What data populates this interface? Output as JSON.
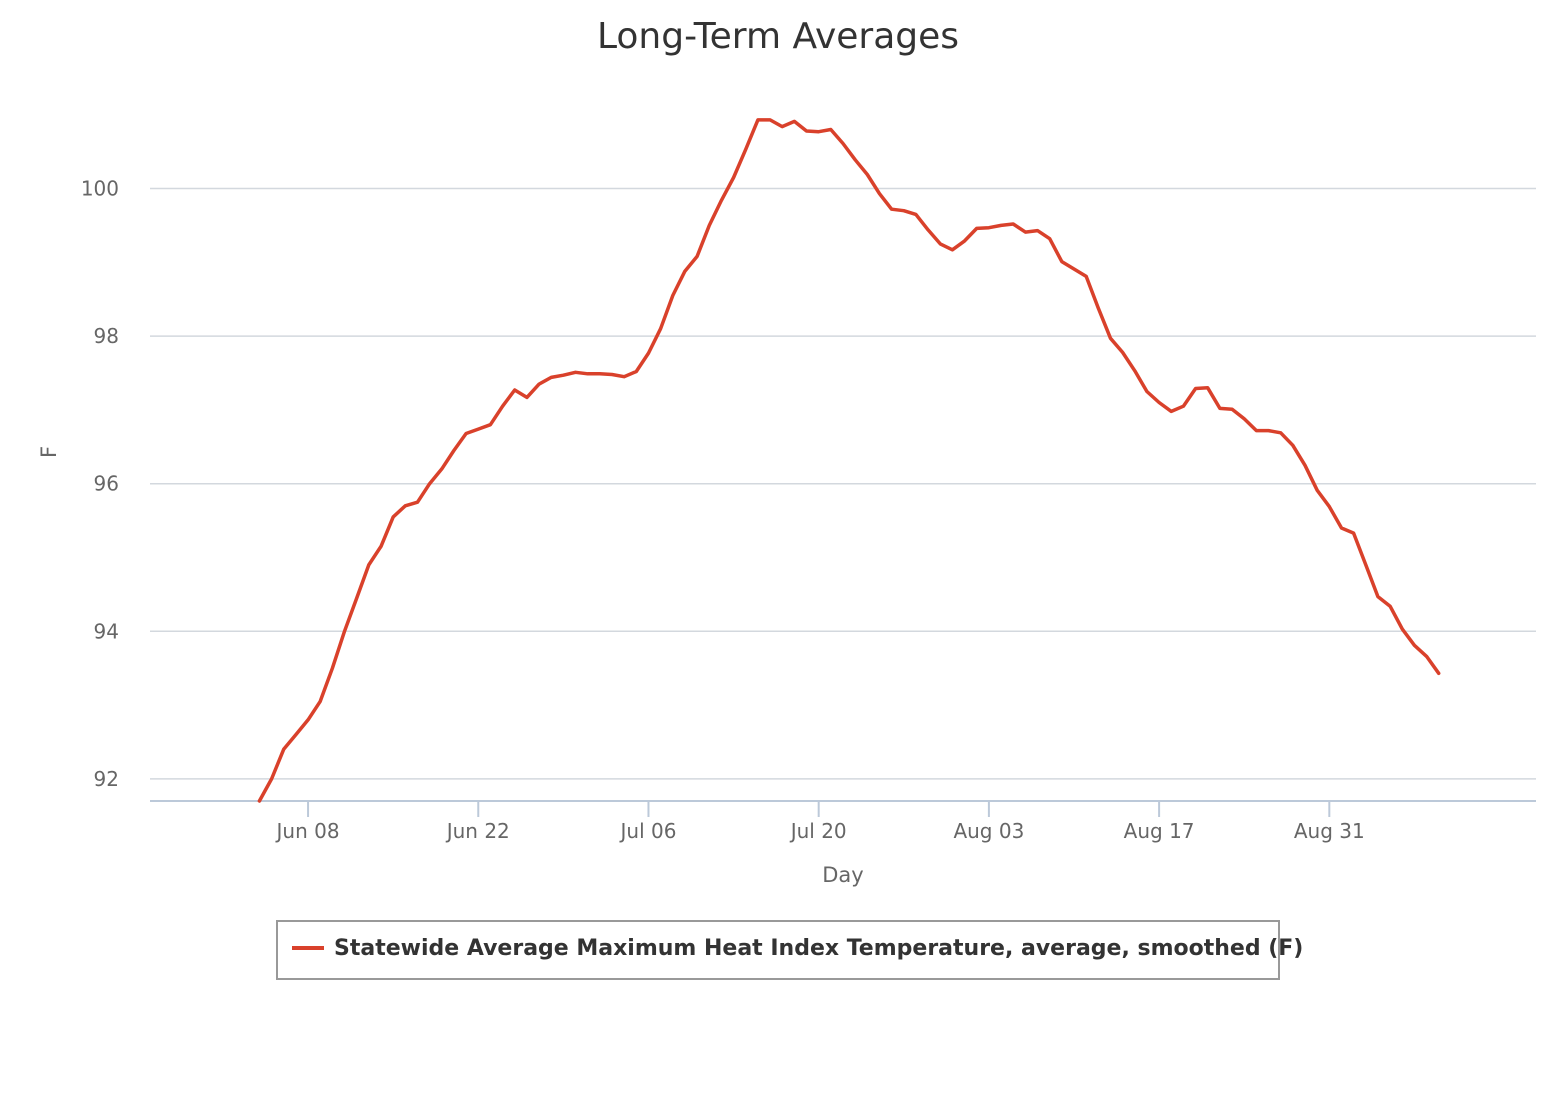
{
  "chart_data": {
    "type": "line",
    "title": "Long-Term Averages",
    "xlabel": "Day",
    "ylabel": "F",
    "ylim": [
      91.7,
      101.2
    ],
    "xlim": [
      "2023-05-26",
      "2023-09-17"
    ],
    "x_ticks": [
      {
        "date": "2023-06-08",
        "label": "Jun 08"
      },
      {
        "date": "2023-06-22",
        "label": "Jun 22"
      },
      {
        "date": "2023-07-06",
        "label": "Jul 06"
      },
      {
        "date": "2023-07-20",
        "label": "Jul 20"
      },
      {
        "date": "2023-08-03",
        "label": "Aug 03"
      },
      {
        "date": "2023-08-17",
        "label": "Aug 17"
      },
      {
        "date": "2023-08-31",
        "label": "Aug 31"
      }
    ],
    "y_ticks": [
      92,
      94,
      96,
      98,
      100
    ],
    "grid": true,
    "legend_position": "bottom-center",
    "series": [
      {
        "name": "Statewide Average Maximum Heat Index Temperature, average, smoothed (F)",
        "color": "#d9412b",
        "start_date": "2023-06-04",
        "values": [
          91.7,
          92.0,
          92.4,
          92.6,
          92.8,
          93.05,
          93.5,
          94.0,
          94.45,
          94.9,
          95.15,
          95.55,
          95.7,
          95.75,
          96.0,
          96.2,
          96.45,
          96.68,
          96.74,
          96.8,
          97.05,
          97.27,
          97.17,
          97.35,
          97.44,
          97.47,
          97.51,
          97.49,
          97.49,
          97.48,
          97.45,
          97.52,
          97.77,
          98.1,
          98.55,
          98.88,
          99.08,
          99.5,
          99.84,
          100.15,
          100.53,
          100.93,
          100.93,
          100.84,
          100.91,
          100.78,
          100.77,
          100.8,
          100.61,
          100.39,
          100.19,
          99.93,
          99.72,
          99.7,
          99.65,
          99.44,
          99.25,
          99.17,
          99.29,
          99.46,
          99.47,
          99.5,
          99.52,
          99.41,
          99.43,
          99.32,
          99.01,
          98.91,
          98.81,
          98.38,
          97.97,
          97.78,
          97.53,
          97.25,
          97.1,
          96.98,
          97.05,
          97.29,
          97.3,
          97.02,
          97.01,
          96.88,
          96.72,
          96.72,
          96.69,
          96.52,
          96.25,
          95.91,
          95.69,
          95.4,
          95.33,
          94.9,
          94.47,
          94.34,
          94.03,
          93.81,
          93.66,
          93.43
        ]
      }
    ]
  }
}
